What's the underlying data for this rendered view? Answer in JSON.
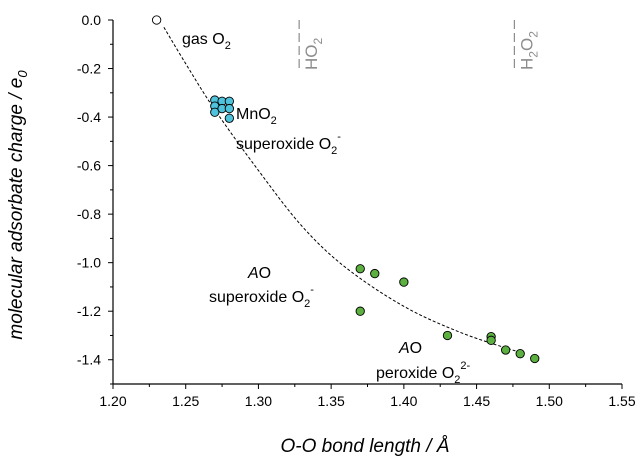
{
  "chart_data": {
    "type": "scatter",
    "xlabel": "O-O bond length / Å",
    "ylabel": "molecular adsorbate charge / e",
    "ylabel_sub": "0",
    "xlim": [
      1.2,
      1.55
    ],
    "ylim": [
      -1.5,
      0.0
    ],
    "x_ticks": [
      1.2,
      1.25,
      1.3,
      1.35,
      1.4,
      1.45,
      1.5,
      1.55
    ],
    "x_tick_labels": [
      "1.20",
      "1.25",
      "1.30",
      "1.35",
      "1.40",
      "1.45",
      "1.50",
      "1.55"
    ],
    "y_ticks": [
      0.0,
      -0.2,
      -0.4,
      -0.6,
      -0.8,
      -1.0,
      -1.2,
      -1.4
    ],
    "y_tick_labels": [
      "0.0",
      "-0.2",
      "-0.4",
      "-0.6",
      "-0.8",
      "-1.0",
      "-1.2",
      "-1.4"
    ],
    "grid": false,
    "series": [
      {
        "color": "#4fc3dc",
        "points": [
          {
            "x": 1.27,
            "y": -0.33
          },
          {
            "x": 1.27,
            "y": -0.355
          },
          {
            "x": 1.27,
            "y": -0.38
          },
          {
            "x": 1.275,
            "y": -0.335
          },
          {
            "x": 1.275,
            "y": -0.365
          },
          {
            "x": 1.28,
            "y": -0.335
          },
          {
            "x": 1.28,
            "y": -0.365
          },
          {
            "x": 1.28,
            "y": -0.405
          }
        ]
      },
      {
        "color": "#5cb040",
        "points": [
          {
            "x": 1.37,
            "y": -1.025
          },
          {
            "x": 1.38,
            "y": -1.045
          },
          {
            "x": 1.4,
            "y": -1.08
          },
          {
            "x": 1.37,
            "y": -1.2
          },
          {
            "x": 1.43,
            "y": -1.3
          },
          {
            "x": 1.46,
            "y": -1.305
          },
          {
            "x": 1.46,
            "y": -1.32
          },
          {
            "x": 1.47,
            "y": -1.36
          },
          {
            "x": 1.48,
            "y": -1.375
          },
          {
            "x": 1.49,
            "y": -1.395
          }
        ]
      },
      {
        "color": "#ffffff",
        "points": [
          {
            "x": 1.23,
            "y": 0.0
          }
        ]
      }
    ],
    "trend_curve": [
      {
        "x": 1.235,
        "y": -0.03
      },
      {
        "x": 1.25,
        "y": -0.18
      },
      {
        "x": 1.27,
        "y": -0.37
      },
      {
        "x": 1.3,
        "y": -0.62
      },
      {
        "x": 1.33,
        "y": -0.85
      },
      {
        "x": 1.36,
        "y": -1.02
      },
      {
        "x": 1.4,
        "y": -1.18
      },
      {
        "x": 1.44,
        "y": -1.29
      },
      {
        "x": 1.48,
        "y": -1.37
      }
    ],
    "reference_lines": [
      {
        "x": 1.328,
        "label": "HO2"
      },
      {
        "x": 1.476,
        "label": "H2O2"
      }
    ],
    "annotations": {
      "gas": {
        "text": "gas O",
        "sub": "2"
      },
      "mno2_line1": {
        "text": "MnO",
        "sub": "2"
      },
      "mno2_line2": {
        "text": "superoxide O",
        "sub": "2",
        "sup": "-"
      },
      "ao1_line1": {
        "italic": "A",
        "text": "O"
      },
      "ao1_line2": {
        "text": "superoxide O",
        "sub": "2",
        "sup": "-"
      },
      "ao2_line1": {
        "italic": "A",
        "text": "O"
      },
      "ao2_line2": {
        "text": "peroxide O",
        "sub": "2",
        "sup": "2-"
      }
    }
  }
}
